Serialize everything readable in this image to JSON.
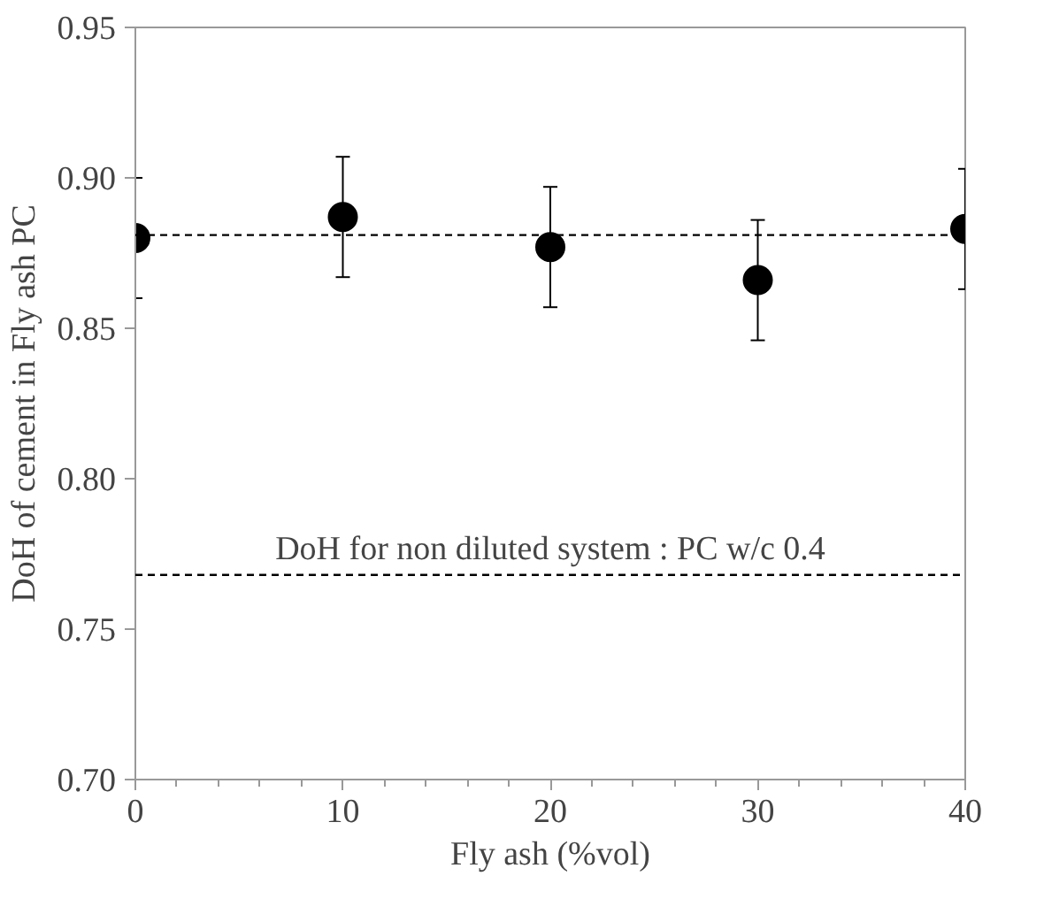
{
  "chart_data": {
    "type": "scatter",
    "xlabel": "Fly ash (%vol)",
    "ylabel": "DoH of cement in Fly ash PC",
    "x": [
      0,
      10,
      20,
      30,
      40
    ],
    "series": [
      {
        "color": "#000000",
        "values": [
          0.88,
          0.887,
          0.877,
          0.866,
          0.883
        ],
        "errors": [
          0.02,
          0.02,
          0.02,
          0.02,
          0.02
        ]
      }
    ],
    "xlim": [
      0,
      40
    ],
    "xticks": [
      0,
      10,
      20,
      30,
      40
    ],
    "ylim": [
      0.7,
      0.95
    ],
    "yticks": [
      {
        "value": 0.7,
        "label": "0.70"
      },
      {
        "value": 0.75,
        "label": "0.75"
      },
      {
        "value": 0.8,
        "label": "0.80"
      },
      {
        "value": 0.85,
        "label": "0.85"
      },
      {
        "value": 0.9,
        "label": "0.90"
      },
      {
        "value": 0.95,
        "label": "0.95"
      }
    ],
    "ref_lines": [
      {
        "axis": "y",
        "value": 0.881,
        "label": null,
        "line_style": "dashed"
      },
      {
        "axis": "y",
        "value": 0.768,
        "label": "DoH for non diluted system : PC w/c 0.4",
        "line_style": "dashed"
      }
    ],
    "marker": "circle",
    "grid": false
  }
}
